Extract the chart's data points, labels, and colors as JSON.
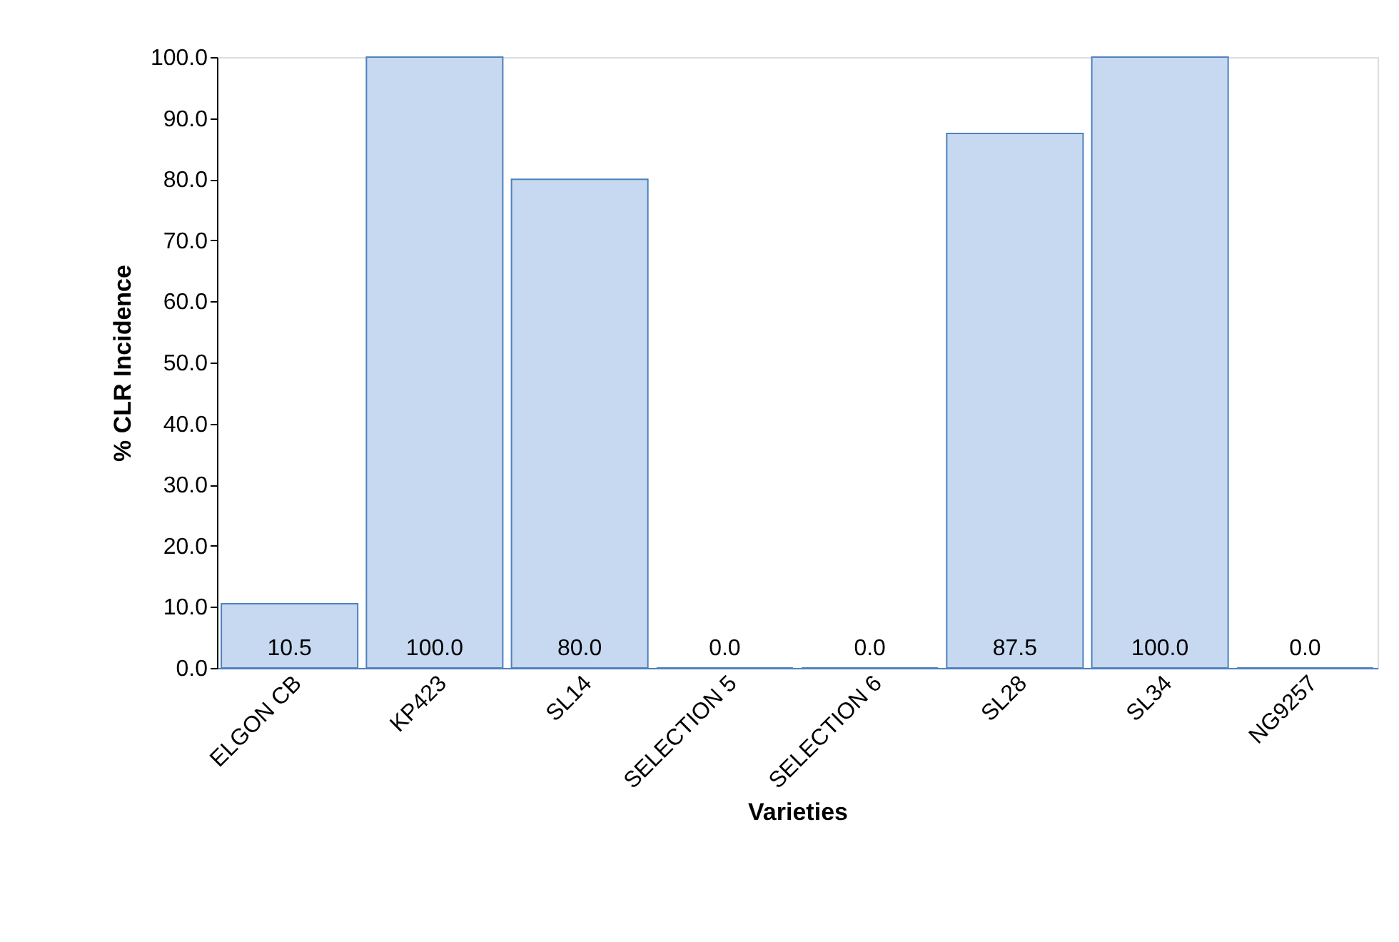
{
  "chart_data": {
    "type": "bar",
    "xlabel": "Varieties",
    "ylabel": "% CLR Incidence",
    "categories": [
      "ELGON CB",
      "KP423",
      "SL14",
      "SELECTION 5",
      "SELECTION 6",
      "SL28",
      "SL34",
      "NG9257"
    ],
    "values": [
      10.5,
      100.0,
      80.0,
      0.0,
      0.0,
      87.5,
      100.0,
      0.0
    ],
    "color": "#c6d9f1",
    "ylim": [
      0,
      100
    ],
    "yticks": [
      {
        "value": 0,
        "label": "0.0"
      },
      {
        "value": 10,
        "label": "10.0"
      },
      {
        "value": 20,
        "label": "20.0"
      },
      {
        "value": 30,
        "label": "30.0"
      },
      {
        "value": 40,
        "label": "40.0"
      },
      {
        "value": 50,
        "label": "50.0"
      },
      {
        "value": 60,
        "label": "60.0"
      },
      {
        "value": 70,
        "label": "70.0"
      },
      {
        "value": 80,
        "label": "80.0"
      },
      {
        "value": 90,
        "label": "90.0"
      },
      {
        "value": 100,
        "label": "100.0"
      }
    ],
    "value_labels": [
      "10.5",
      "100.0",
      "80.0",
      "0.0",
      "0.0",
      "87.5",
      "100.0",
      "0.0"
    ],
    "grid": false
  }
}
